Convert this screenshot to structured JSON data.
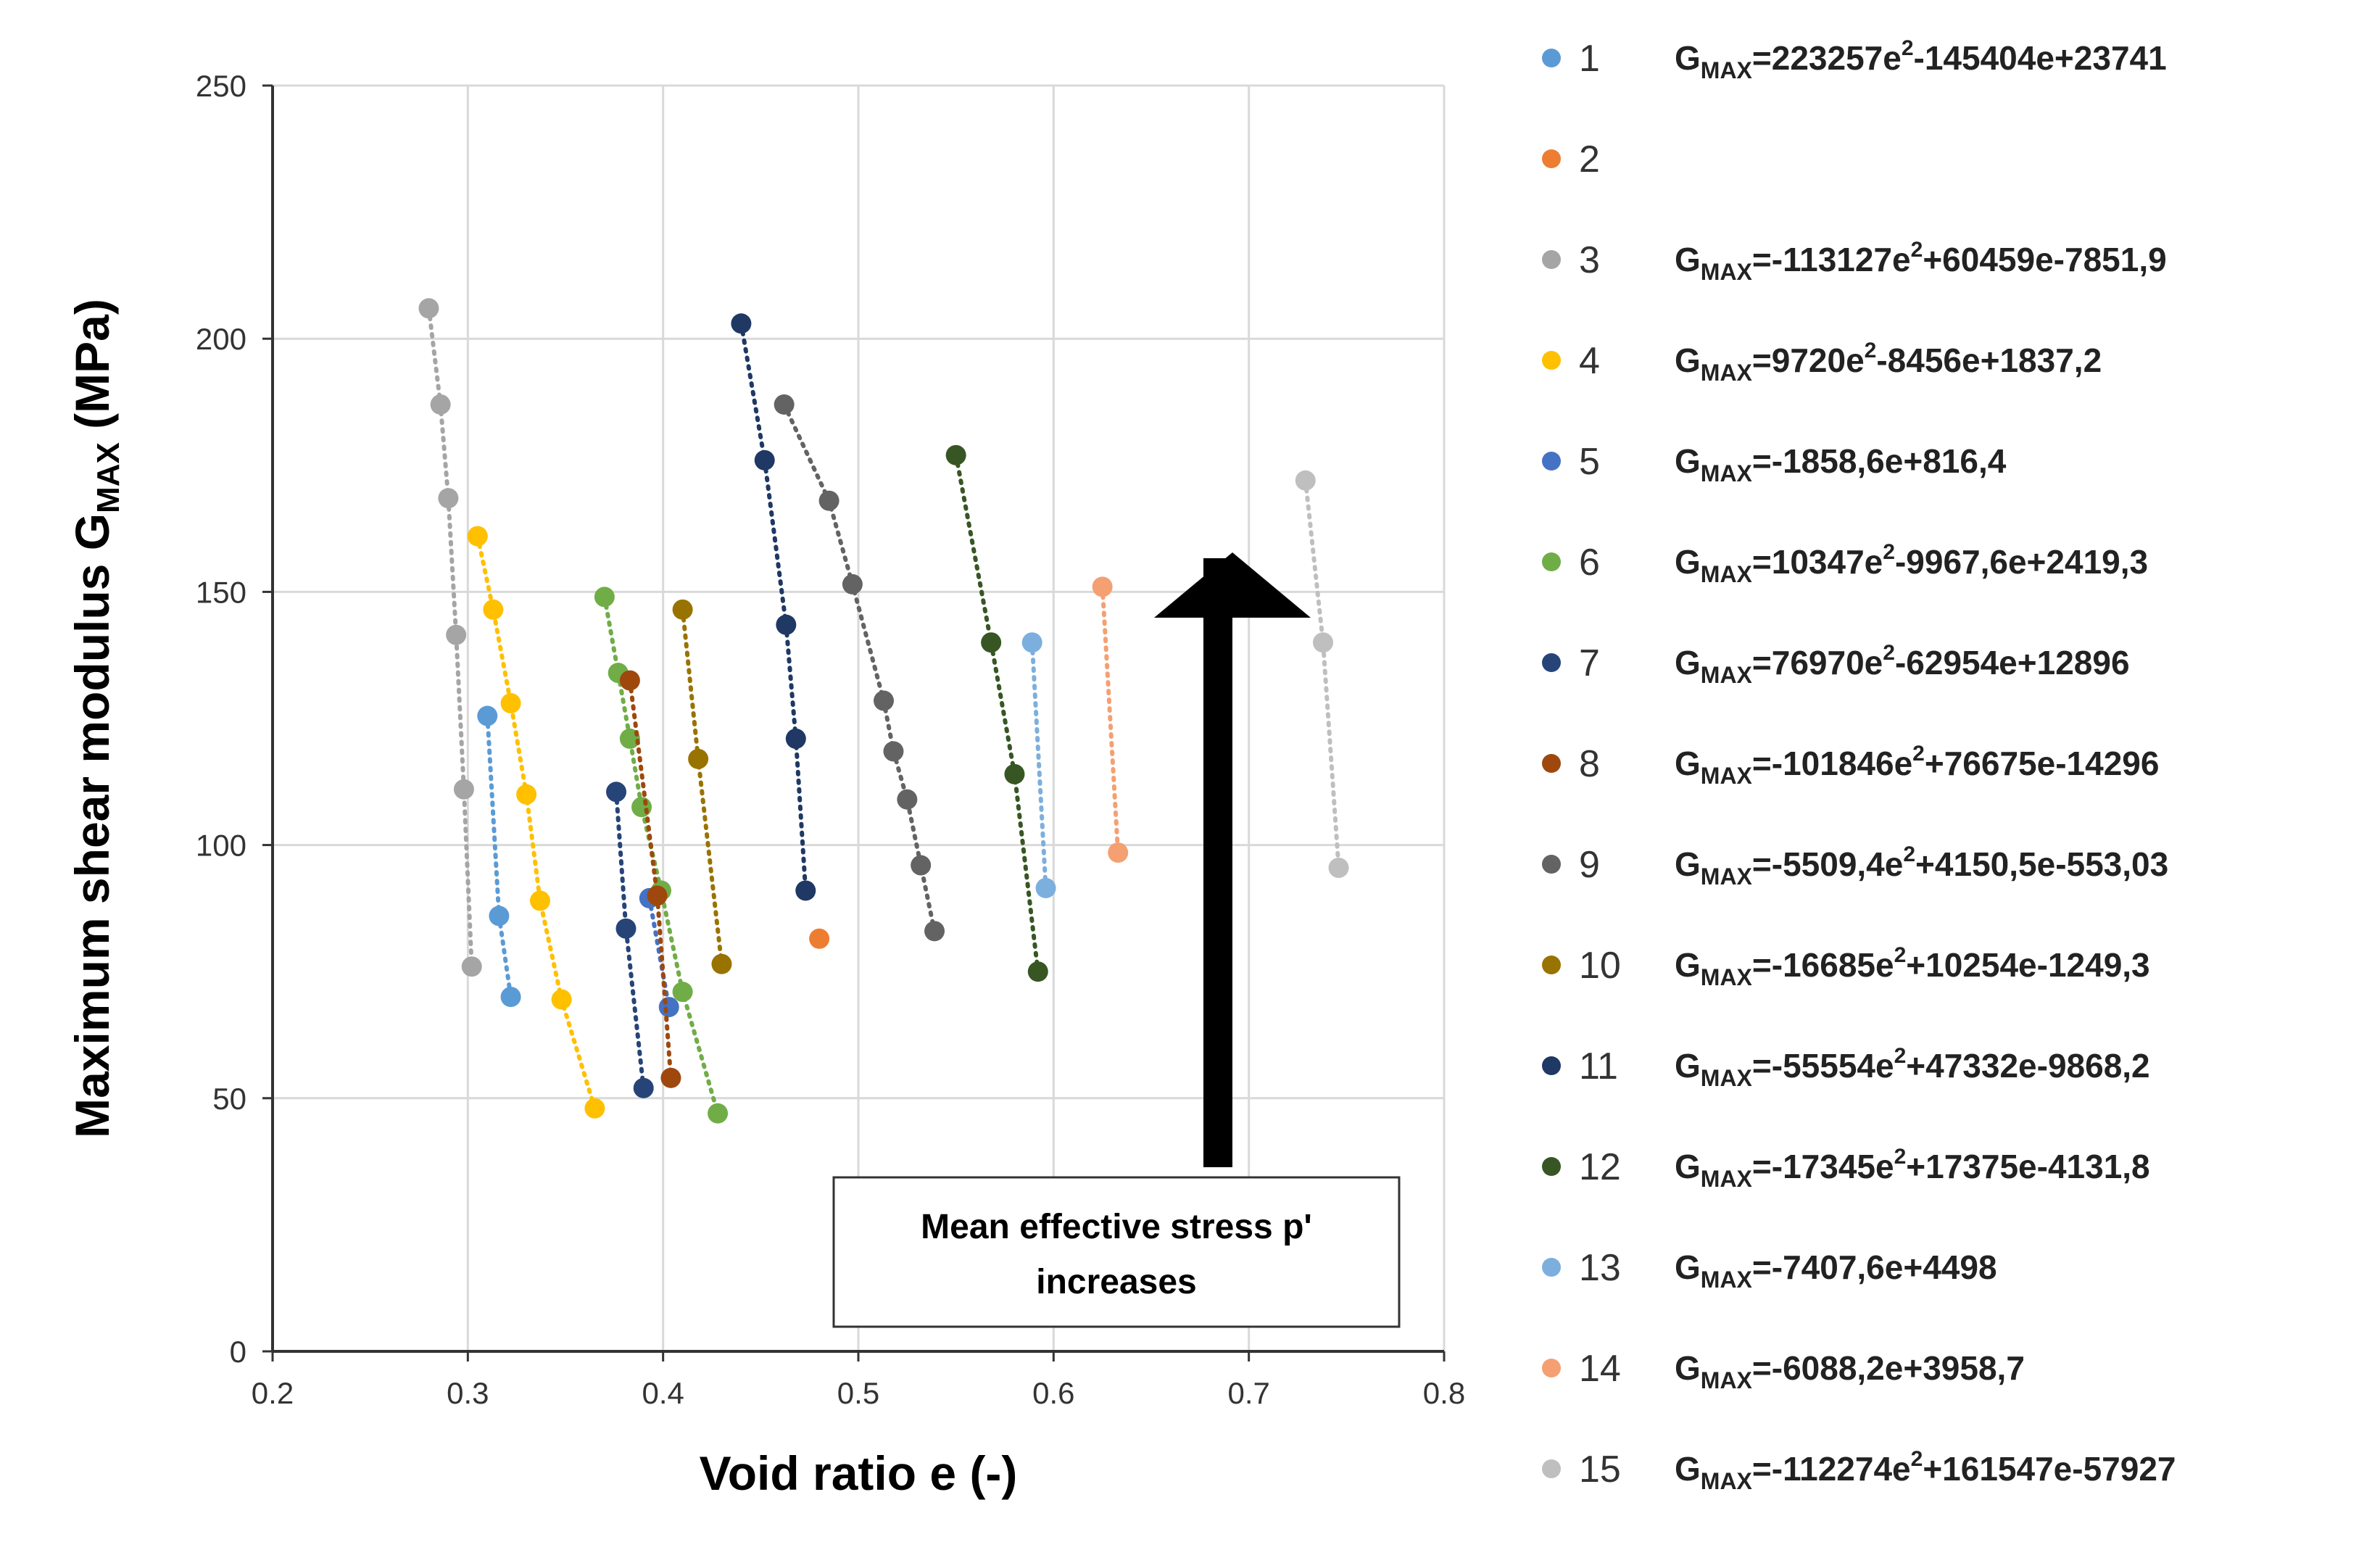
{
  "chart_data": {
    "type": "scatter",
    "xlabel": "Void ratio e (-)",
    "ylabel": "Maximum shear modulus G",
    "ylabel_sub": "MAX",
    "ylabel_unit": " (MPa)",
    "xlim": [
      0.2,
      0.8
    ],
    "ylim": [
      0,
      250
    ],
    "x_ticks": [
      "0.2",
      "0.3",
      "0.4",
      "0.5",
      "0.6",
      "0.7",
      "0.8"
    ],
    "y_ticks": [
      "0",
      "50",
      "100",
      "150",
      "200",
      "250"
    ],
    "grid": true,
    "legend_position": "right",
    "annotation": {
      "lines": [
        "Mean effective stress p'",
        "increases"
      ],
      "arrow_direction": "up"
    },
    "series": [
      {
        "name": "1",
        "color": "#5B9BD5",
        "eq": {
          "pre": "=223257e",
          "sup": "2",
          "post": "-145404e+23741"
        },
        "points": [
          [
            0.31,
            125.5
          ],
          [
            0.316,
            86
          ],
          [
            0.322,
            70
          ]
        ]
      },
      {
        "name": "2",
        "color": "#ED7D31",
        "eq": null,
        "points": [
          [
            0.48,
            81.5
          ]
        ]
      },
      {
        "name": "3",
        "color": "#A5A5A5",
        "eq": {
          "pre": "=-113127e",
          "sup": "2",
          "post": "+60459e-7851,9"
        },
        "points": [
          [
            0.28,
            206
          ],
          [
            0.286,
            187
          ],
          [
            0.29,
            168.5
          ],
          [
            0.294,
            141.5
          ],
          [
            0.298,
            111
          ],
          [
            0.302,
            76
          ]
        ]
      },
      {
        "name": "4",
        "color": "#FFC000",
        "eq": {
          "pre": "=9720e",
          "sup": "2",
          "post": "-8456e+1837,2"
        },
        "points": [
          [
            0.305,
            161
          ],
          [
            0.313,
            146.5
          ],
          [
            0.322,
            128
          ],
          [
            0.33,
            110
          ],
          [
            0.337,
            89
          ],
          [
            0.348,
            69.5
          ],
          [
            0.365,
            48
          ]
        ]
      },
      {
        "name": "5",
        "color": "#4472C4",
        "eq": {
          "pre": "=-1858,6e+816,4",
          "sup": "",
          "post": ""
        },
        "points": [
          [
            0.393,
            89.5
          ],
          [
            0.403,
            68
          ]
        ]
      },
      {
        "name": "6",
        "color": "#70AD47",
        "eq": {
          "pre": "=10347e",
          "sup": "2",
          "post": "-9967,6e+2419,3"
        },
        "points": [
          [
            0.37,
            149
          ],
          [
            0.377,
            134
          ],
          [
            0.383,
            121
          ],
          [
            0.389,
            107.5
          ],
          [
            0.399,
            91
          ],
          [
            0.41,
            71
          ],
          [
            0.428,
            47
          ]
        ]
      },
      {
        "name": "7",
        "color": "#264478",
        "eq": {
          "pre": "=76970e",
          "sup": "2",
          "post": "-62954e+12896"
        },
        "points": [
          [
            0.376,
            110.5
          ],
          [
            0.381,
            83.5
          ],
          [
            0.39,
            52
          ]
        ]
      },
      {
        "name": "8",
        "color": "#9E480E",
        "eq": {
          "pre": "=-101846e",
          "sup": "2",
          "post": "+76675e-14296"
        },
        "points": [
          [
            0.383,
            132.5
          ],
          [
            0.397,
            90
          ],
          [
            0.404,
            54
          ]
        ]
      },
      {
        "name": "9",
        "color": "#636363",
        "eq": {
          "pre": "=-5509,4e",
          "sup": "2",
          "post": "+4150,5e-553,03"
        },
        "points": [
          [
            0.462,
            187
          ],
          [
            0.485,
            168
          ],
          [
            0.497,
            151.5
          ],
          [
            0.513,
            128.5
          ],
          [
            0.518,
            118.5
          ],
          [
            0.525,
            109
          ],
          [
            0.532,
            96
          ],
          [
            0.539,
            83
          ]
        ]
      },
      {
        "name": "10",
        "color": "#997300",
        "eq": {
          "pre": "=-16685e",
          "sup": "2",
          "post": "+10254e-1249,3"
        },
        "points": [
          [
            0.41,
            146.5
          ],
          [
            0.418,
            117
          ],
          [
            0.43,
            76.5
          ]
        ]
      },
      {
        "name": "11",
        "color": "#1F3864",
        "eq": {
          "pre": "=-55554e",
          "sup": "2",
          "post": "+47332e-9868,2"
        },
        "points": [
          [
            0.44,
            203
          ],
          [
            0.452,
            176
          ],
          [
            0.463,
            143.5
          ],
          [
            0.468,
            121
          ],
          [
            0.473,
            91
          ]
        ]
      },
      {
        "name": "12",
        "color": "#375623",
        "eq": {
          "pre": "=-17345e",
          "sup": "2",
          "post": "+17375e-4131,8"
        },
        "points": [
          [
            0.55,
            177
          ],
          [
            0.568,
            140
          ],
          [
            0.58,
            114
          ],
          [
            0.592,
            75
          ]
        ]
      },
      {
        "name": "13",
        "color": "#7CAFDD",
        "eq": {
          "pre": "=-7407,6e+4498",
          "sup": "",
          "post": ""
        },
        "points": [
          [
            0.589,
            140
          ],
          [
            0.596,
            91.5
          ]
        ]
      },
      {
        "name": "14",
        "color": "#F4A072",
        "eq": {
          "pre": "=-6088,2e+3958,7",
          "sup": "",
          "post": ""
        },
        "points": [
          [
            0.625,
            151
          ],
          [
            0.633,
            98.5
          ]
        ]
      },
      {
        "name": "15",
        "color": "#BFBFBF",
        "eq": {
          "pre": "=-112274e",
          "sup": "2",
          "post": "+161547e-57927"
        },
        "points": [
          [
            0.729,
            172
          ],
          [
            0.738,
            140
          ],
          [
            0.746,
            95.5
          ]
        ]
      }
    ]
  }
}
